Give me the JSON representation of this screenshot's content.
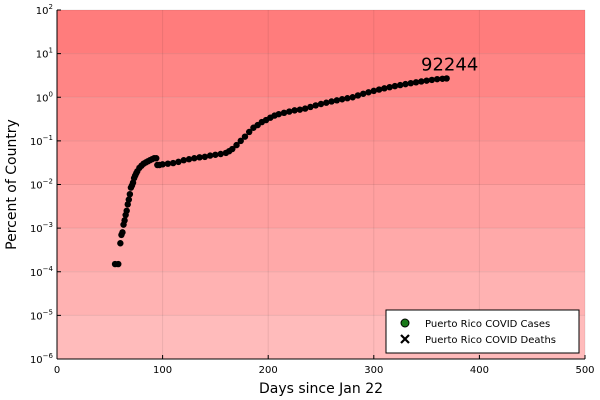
{
  "chart_data": {
    "type": "scatter",
    "title": "",
    "xlabel": "Days since Jan 22",
    "ylabel": "Percent of Country",
    "xlim": [
      0,
      500
    ],
    "ylim": [
      1e-06,
      100
    ],
    "yscale": "log",
    "x_ticks": [
      0,
      100,
      200,
      300,
      400,
      500
    ],
    "y_tick_exponents": [
      -6,
      -5,
      -4,
      -3,
      -2,
      -1,
      0,
      1,
      2
    ],
    "y_tick_base": "10",
    "grid": true,
    "legend_position": "bottom-right",
    "background_band_colors": [
      "#ffbbbb",
      "#ffb2b2",
      "#ffa9a9",
      "#ffa0a0",
      "#ff9797",
      "#ff8e8e",
      "#ff8585",
      "#ff7c7c",
      "#ff6868",
      "#ff6161"
    ],
    "annotation": {
      "text": "92244",
      "x": 369,
      "y": 2.7
    },
    "series": [
      {
        "name": "Puerto Rico COVID Cases",
        "marker": "circle",
        "color": "#000000",
        "legend_fill": "#1a7a1a",
        "points": [
          [
            55,
            0.00015
          ],
          [
            58,
            0.00015
          ],
          [
            60,
            0.00045
          ],
          [
            61,
            0.0007
          ],
          [
            62,
            0.0008
          ],
          [
            63,
            0.0012
          ],
          [
            64,
            0.0015
          ],
          [
            65,
            0.002
          ],
          [
            66,
            0.0025
          ],
          [
            67,
            0.0035
          ],
          [
            68,
            0.0045
          ],
          [
            69,
            0.006
          ],
          [
            70,
            0.0085
          ],
          [
            71,
            0.0095
          ],
          [
            72,
            0.011
          ],
          [
            73,
            0.014
          ],
          [
            74,
            0.016
          ],
          [
            75,
            0.018
          ],
          [
            76,
            0.02
          ],
          [
            78,
            0.024
          ],
          [
            80,
            0.027
          ],
          [
            82,
            0.03
          ],
          [
            84,
            0.032
          ],
          [
            86,
            0.034
          ],
          [
            88,
            0.036
          ],
          [
            90,
            0.038
          ],
          [
            92,
            0.04
          ],
          [
            94,
            0.04
          ],
          [
            95,
            0.028
          ],
          [
            97,
            0.028
          ],
          [
            100,
            0.029
          ],
          [
            105,
            0.03
          ],
          [
            110,
            0.031
          ],
          [
            115,
            0.033
          ],
          [
            120,
            0.036
          ],
          [
            125,
            0.038
          ],
          [
            130,
            0.04
          ],
          [
            135,
            0.042
          ],
          [
            140,
            0.043
          ],
          [
            145,
            0.046
          ],
          [
            150,
            0.048
          ],
          [
            155,
            0.05
          ],
          [
            160,
            0.053
          ],
          [
            163,
            0.058
          ],
          [
            166,
            0.065
          ],
          [
            170,
            0.08
          ],
          [
            174,
            0.1
          ],
          [
            178,
            0.125
          ],
          [
            182,
            0.16
          ],
          [
            186,
            0.2
          ],
          [
            190,
            0.23
          ],
          [
            194,
            0.27
          ],
          [
            198,
            0.3
          ],
          [
            202,
            0.34
          ],
          [
            206,
            0.38
          ],
          [
            210,
            0.41
          ],
          [
            215,
            0.44
          ],
          [
            220,
            0.47
          ],
          [
            225,
            0.5
          ],
          [
            230,
            0.52
          ],
          [
            235,
            0.55
          ],
          [
            240,
            0.6
          ],
          [
            245,
            0.65
          ],
          [
            250,
            0.7
          ],
          [
            255,
            0.75
          ],
          [
            260,
            0.8
          ],
          [
            265,
            0.85
          ],
          [
            270,
            0.9
          ],
          [
            275,
            0.95
          ],
          [
            280,
            1.0
          ],
          [
            285,
            1.1
          ],
          [
            290,
            1.2
          ],
          [
            295,
            1.3
          ],
          [
            300,
            1.4
          ],
          [
            305,
            1.5
          ],
          [
            310,
            1.6
          ],
          [
            315,
            1.7
          ],
          [
            320,
            1.8
          ],
          [
            325,
            1.9
          ],
          [
            330,
            2.0
          ],
          [
            335,
            2.1
          ],
          [
            340,
            2.2
          ],
          [
            345,
            2.3
          ],
          [
            350,
            2.4
          ],
          [
            355,
            2.5
          ],
          [
            360,
            2.6
          ],
          [
            365,
            2.65
          ],
          [
            369,
            2.7
          ]
        ]
      },
      {
        "name": "Puerto Rico COVID Deaths",
        "marker": "x",
        "color": "#000000",
        "points": []
      }
    ]
  }
}
